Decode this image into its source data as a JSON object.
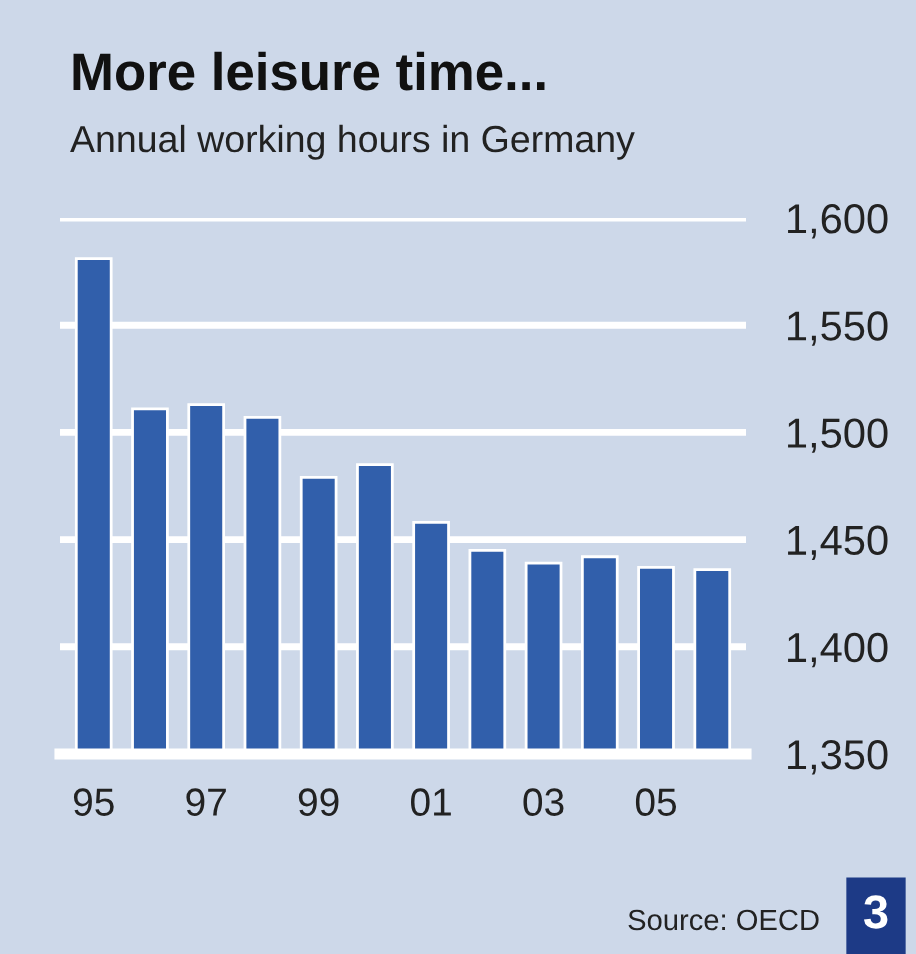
{
  "chart_data": {
    "type": "bar",
    "title": "More leisure time...",
    "subtitle": "Annual working hours in Germany",
    "categories": [
      "95",
      null,
      "97",
      null,
      "99",
      null,
      "01",
      null,
      "03",
      null,
      "05",
      null
    ],
    "values": [
      1581,
      1511,
      1513,
      1507,
      1479,
      1485,
      1458,
      1445,
      1439,
      1442,
      1437,
      1436
    ],
    "color": "#315fab",
    "ylim": [
      1350,
      1600
    ],
    "yticks": [
      {
        "value": 1350,
        "label": "1,350"
      },
      {
        "value": 1400,
        "label": "1,400"
      },
      {
        "value": 1450,
        "label": "1,450"
      },
      {
        "value": 1500,
        "label": "1,500"
      },
      {
        "value": 1550,
        "label": "1,550"
      },
      {
        "value": 1600,
        "label": "1,600"
      }
    ],
    "grid": "y",
    "annotations": [
      "Source: OECD",
      "3"
    ]
  }
}
